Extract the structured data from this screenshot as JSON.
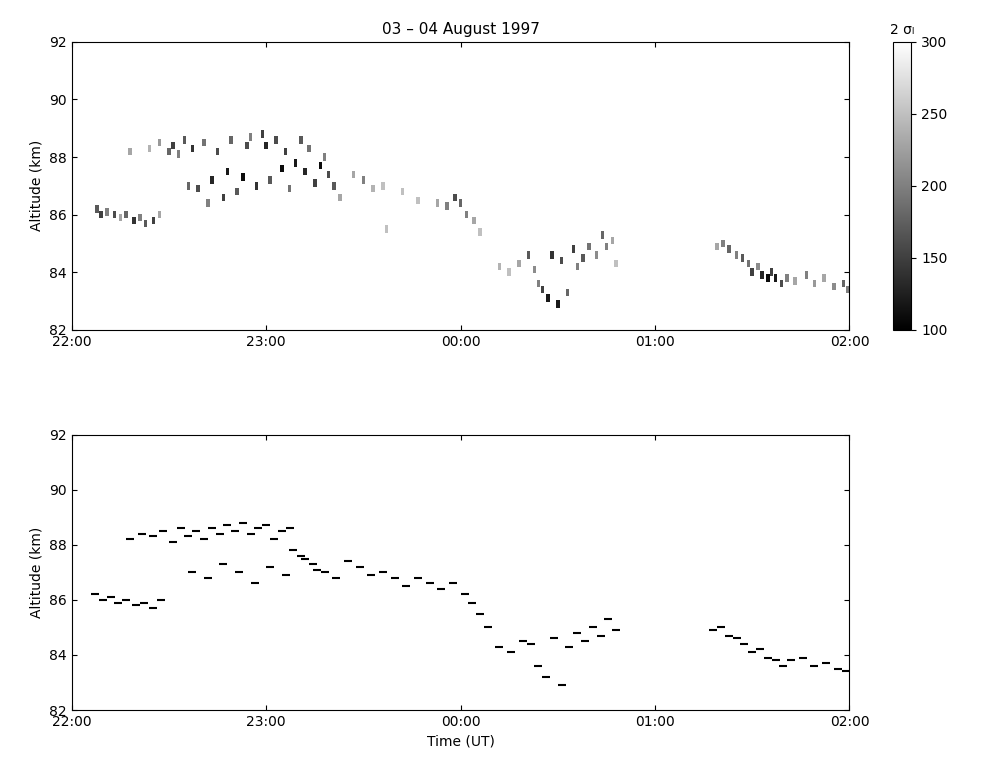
{
  "chart_data": [
    {
      "type": "heatmap",
      "title": "03 – 04 August 1997",
      "ylabel": "Altitude (km)",
      "xlim": [
        22,
        26
      ],
      "xticks": [
        {
          "value": 22,
          "label": "22:00"
        },
        {
          "value": 23,
          "label": "23:00"
        },
        {
          "value": 24,
          "label": "00:00"
        },
        {
          "value": 25,
          "label": "01:00"
        },
        {
          "value": 26,
          "label": "02:00"
        }
      ],
      "ylim": [
        82,
        92
      ],
      "yticks": [
        82,
        84,
        86,
        88,
        90,
        92
      ],
      "colorbar": {
        "label": "2 σₗ",
        "range": [
          100,
          300
        ],
        "ticks": [
          100,
          150,
          200,
          250,
          300
        ]
      },
      "cells": [
        [
          22.13,
          86.2,
          170
        ],
        [
          22.15,
          86.0,
          150
        ],
        [
          22.18,
          86.1,
          200
        ],
        [
          22.22,
          86.0,
          160
        ],
        [
          22.25,
          85.9,
          230
        ],
        [
          22.28,
          86.0,
          180
        ],
        [
          22.32,
          85.8,
          140
        ],
        [
          22.35,
          85.9,
          200
        ],
        [
          22.38,
          85.7,
          170
        ],
        [
          22.42,
          85.8,
          150
        ],
        [
          22.45,
          86.0,
          230
        ],
        [
          22.3,
          88.2,
          230
        ],
        [
          22.4,
          88.3,
          240
        ],
        [
          22.45,
          88.5,
          220
        ],
        [
          22.5,
          88.2,
          180
        ],
        [
          22.52,
          88.4,
          150
        ],
        [
          22.55,
          88.1,
          200
        ],
        [
          22.58,
          88.6,
          170
        ],
        [
          22.6,
          87.0,
          180
        ],
        [
          22.62,
          88.3,
          140
        ],
        [
          22.65,
          86.9,
          160
        ],
        [
          22.68,
          88.5,
          190
        ],
        [
          22.7,
          86.4,
          200
        ],
        [
          22.72,
          87.2,
          130
        ],
        [
          22.75,
          88.2,
          160
        ],
        [
          22.78,
          86.6,
          150
        ],
        [
          22.8,
          87.5,
          120
        ],
        [
          22.82,
          88.6,
          180
        ],
        [
          22.85,
          86.8,
          170
        ],
        [
          22.88,
          87.3,
          110
        ],
        [
          22.9,
          88.4,
          160
        ],
        [
          22.92,
          88.7,
          200
        ],
        [
          22.95,
          87.0,
          140
        ],
        [
          22.98,
          88.8,
          150
        ],
        [
          23.0,
          88.4,
          130
        ],
        [
          23.02,
          87.2,
          170
        ],
        [
          23.05,
          88.6,
          160
        ],
        [
          23.08,
          87.6,
          110
        ],
        [
          23.1,
          88.2,
          150
        ],
        [
          23.12,
          86.9,
          190
        ],
        [
          23.15,
          87.8,
          120
        ],
        [
          23.18,
          88.6,
          170
        ],
        [
          23.2,
          87.5,
          130
        ],
        [
          23.22,
          88.3,
          190
        ],
        [
          23.25,
          87.1,
          150
        ],
        [
          23.28,
          87.7,
          110
        ],
        [
          23.3,
          88.0,
          200
        ],
        [
          23.32,
          87.4,
          160
        ],
        [
          23.35,
          87.0,
          170
        ],
        [
          23.38,
          86.6,
          230
        ],
        [
          23.45,
          87.4,
          230
        ],
        [
          23.5,
          87.2,
          200
        ],
        [
          23.55,
          86.9,
          240
        ],
        [
          23.6,
          87.0,
          250
        ],
        [
          23.62,
          85.5,
          250
        ],
        [
          23.7,
          86.8,
          250
        ],
        [
          23.78,
          86.5,
          250
        ],
        [
          23.88,
          86.4,
          230
        ],
        [
          23.93,
          86.3,
          200
        ],
        [
          23.97,
          86.6,
          160
        ],
        [
          24.0,
          86.4,
          180
        ],
        [
          24.03,
          86.0,
          200
        ],
        [
          24.07,
          85.8,
          230
        ],
        [
          24.1,
          85.4,
          250
        ],
        [
          24.2,
          84.2,
          240
        ],
        [
          24.25,
          84.0,
          250
        ],
        [
          24.3,
          84.3,
          230
        ],
        [
          24.35,
          84.6,
          170
        ],
        [
          24.38,
          84.1,
          210
        ],
        [
          24.4,
          83.6,
          200
        ],
        [
          24.42,
          83.4,
          150
        ],
        [
          24.45,
          83.1,
          120
        ],
        [
          24.47,
          84.6,
          140
        ],
        [
          24.5,
          82.9,
          120
        ],
        [
          24.52,
          84.4,
          160
        ],
        [
          24.55,
          83.3,
          180
        ],
        [
          24.58,
          84.8,
          150
        ],
        [
          24.6,
          84.2,
          200
        ],
        [
          24.63,
          84.5,
          170
        ],
        [
          24.66,
          84.9,
          190
        ],
        [
          24.7,
          84.6,
          210
        ],
        [
          24.73,
          85.3,
          180
        ],
        [
          24.75,
          84.9,
          200
        ],
        [
          24.78,
          85.1,
          230
        ],
        [
          24.8,
          84.3,
          250
        ],
        [
          25.32,
          84.9,
          230
        ],
        [
          25.35,
          85.0,
          200
        ],
        [
          25.38,
          84.8,
          180
        ],
        [
          25.42,
          84.6,
          200
        ],
        [
          25.45,
          84.5,
          170
        ],
        [
          25.48,
          84.3,
          190
        ],
        [
          25.5,
          84.0,
          150
        ],
        [
          25.53,
          84.2,
          210
        ],
        [
          25.55,
          83.9,
          130
        ],
        [
          25.58,
          83.8,
          110
        ],
        [
          25.6,
          84.0,
          150
        ],
        [
          25.62,
          83.8,
          120
        ],
        [
          25.65,
          83.6,
          160
        ],
        [
          25.68,
          83.8,
          200
        ],
        [
          25.72,
          83.7,
          230
        ],
        [
          25.78,
          83.9,
          200
        ],
        [
          25.82,
          83.6,
          220
        ],
        [
          25.87,
          83.8,
          230
        ],
        [
          25.92,
          83.5,
          210
        ],
        [
          25.97,
          83.6,
          180
        ],
        [
          25.99,
          83.4,
          200
        ]
      ]
    },
    {
      "type": "scatter",
      "xlabel": "Time (UT)",
      "ylabel": "Altitude (km)",
      "marker": "dash",
      "color": "#000000",
      "xlim": [
        22,
        26
      ],
      "xticks": [
        {
          "value": 22,
          "label": "22:00"
        },
        {
          "value": 23,
          "label": "23:00"
        },
        {
          "value": 24,
          "label": "00:00"
        },
        {
          "value": 25,
          "label": "01:00"
        },
        {
          "value": 26,
          "label": "02:00"
        }
      ],
      "ylim": [
        82,
        92
      ],
      "yticks": [
        82,
        84,
        86,
        88,
        90,
        92
      ],
      "x": [
        22.12,
        22.16,
        22.2,
        22.24,
        22.28,
        22.33,
        22.37,
        22.42,
        22.46,
        22.3,
        22.36,
        22.42,
        22.47,
        22.52,
        22.56,
        22.6,
        22.64,
        22.68,
        22.72,
        22.76,
        22.8,
        22.84,
        22.88,
        22.92,
        22.96,
        23.0,
        23.04,
        23.08,
        23.12,
        22.62,
        22.7,
        22.78,
        22.86,
        22.94,
        23.02,
        23.1,
        23.18,
        23.26,
        23.14,
        23.2,
        23.24,
        23.3,
        23.36,
        23.42,
        23.48,
        23.54,
        23.6,
        23.66,
        23.72,
        23.78,
        23.84,
        23.9,
        23.96,
        24.02,
        24.06,
        24.1,
        24.14,
        24.2,
        24.26,
        24.32,
        24.36,
        24.4,
        24.44,
        24.48,
        24.52,
        24.56,
        24.6,
        24.64,
        24.68,
        24.72,
        24.76,
        24.8,
        25.3,
        25.34,
        25.38,
        25.42,
        25.46,
        25.5,
        25.54,
        25.58,
        25.62,
        25.66,
        25.7,
        25.76,
        25.82,
        25.88,
        25.94,
        25.98
      ],
      "values": [
        86.2,
        86.0,
        86.1,
        85.9,
        86.0,
        85.8,
        85.9,
        85.7,
        86.0,
        88.2,
        88.4,
        88.3,
        88.5,
        88.1,
        88.6,
        88.3,
        88.5,
        88.2,
        88.6,
        88.4,
        88.7,
        88.5,
        88.8,
        88.4,
        88.6,
        88.7,
        88.2,
        88.5,
        88.6,
        87.0,
        86.8,
        87.3,
        87.0,
        86.6,
        87.2,
        86.9,
        87.6,
        87.1,
        87.8,
        87.5,
        87.3,
        87.0,
        86.8,
        87.4,
        87.2,
        86.9,
        87.0,
        86.8,
        86.5,
        86.8,
        86.6,
        86.4,
        86.6,
        86.2,
        85.9,
        85.5,
        85.0,
        84.3,
        84.1,
        84.5,
        84.4,
        83.6,
        83.2,
        84.6,
        82.9,
        84.3,
        84.8,
        84.5,
        85.0,
        84.7,
        85.3,
        84.9,
        84.9,
        85.0,
        84.7,
        84.6,
        84.4,
        84.1,
        84.2,
        83.9,
        83.8,
        83.6,
        83.8,
        83.9,
        83.6,
        83.7,
        83.5,
        83.4
      ]
    }
  ]
}
